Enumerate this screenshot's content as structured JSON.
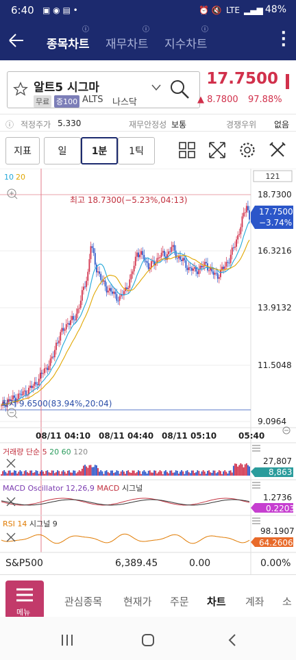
{
  "status": {
    "time": "6:40",
    "net": "LTE",
    "battery": "48%"
  },
  "nav": {
    "tabs": [
      "종목차트",
      "재무차트",
      "지수차트"
    ],
    "active": 0
  },
  "stock": {
    "name": "알트5 시그마",
    "tag_free": "무료",
    "tag_margin": "증100",
    "ticker": "ALTS",
    "exchange": "나스닥",
    "price": "17.7500",
    "change": "▲ 8.7800",
    "pct": "97.88%"
  },
  "info": {
    "fair_label": "적정주가",
    "fair_value": "5.330",
    "fin_label": "재무안정성",
    "fin_value": "보통",
    "comp_label": "경쟁우위",
    "comp_value": "없음"
  },
  "toolbar": {
    "indicator": "지표",
    "day": "일",
    "minute": "1분",
    "tick": "1틱"
  },
  "chart": {
    "ma_labels": [
      "10",
      "20"
    ],
    "period_count": "121",
    "high_label": "최고 18.7300(−5.23%,04:13)",
    "low_label": "최저 9.6500(83.94%,20:04)",
    "price_ticks": [
      "18.7300",
      "16.3216",
      "13.9132",
      "11.5048",
      "9.0964"
    ],
    "current_price": "17.7500",
    "current_pct": "−3.74%",
    "time_ticks": [
      "08/11 04:10",
      "08/11 04:40",
      "08/11 05:10",
      "05:40"
    ],
    "volume_label": "거래량 단순 5 20 60 120",
    "volume_value": "27,807",
    "volume_current": "8,863",
    "macd_label": "MACD Oscillator 12,26,9 MACD 시그널",
    "macd_value": "1.2736",
    "macd_current": "0.2203",
    "rsi_label": "RSI 14 시그널 9",
    "rsi_value": "98.1907",
    "rsi_current": "64.2606"
  },
  "index_row": {
    "name": "S&P500",
    "value": "6,389.45",
    "change": "0.00",
    "pct": "0.00%"
  },
  "bottom_nav": {
    "menu": "메뉴",
    "items": [
      "관심종목",
      "현재가",
      "주문",
      "차트",
      "계좌",
      "소"
    ],
    "active": 3
  },
  "colors": {
    "nav_bg": "#1c2a6e",
    "up": "#d1304b",
    "down": "#2b56c9",
    "accent": "#c23a6a"
  }
}
